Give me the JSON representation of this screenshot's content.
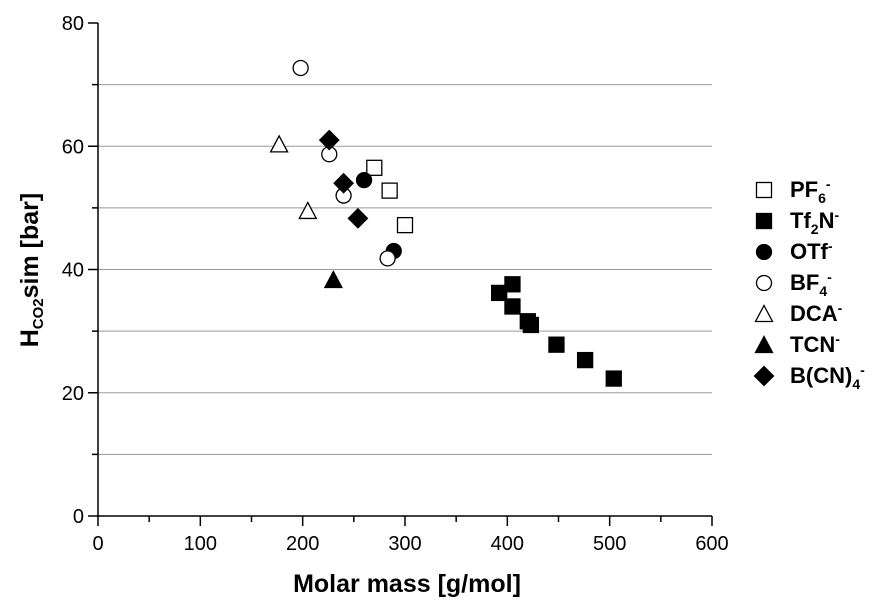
{
  "chart_data": {
    "type": "scatter",
    "title": "",
    "xlabel": "Molar mass [g/mol]",
    "ylabel": {
      "main": "H",
      "sub": "CO2",
      "rest": "sim [bar]"
    },
    "xlim": [
      0,
      600
    ],
    "ylim": [
      0,
      80
    ],
    "xticks": [
      0,
      100,
      200,
      300,
      400,
      500,
      600
    ],
    "yticks": [
      0,
      20,
      40,
      60,
      80
    ],
    "grid": "horizontal",
    "legend_position": "right",
    "series": [
      {
        "name": "PF6-",
        "label": {
          "base": "PF",
          "sub": "6",
          "sup": "-"
        },
        "marker": "square-open",
        "points": [
          {
            "x": 270,
            "y": 56.5
          },
          {
            "x": 285,
            "y": 52.8
          },
          {
            "x": 300,
            "y": 47.2
          }
        ]
      },
      {
        "name": "Tf2N-",
        "label": {
          "base": "Tf",
          "sub": "2",
          "tail": "N",
          "sup": "-"
        },
        "marker": "square-filled",
        "points": [
          {
            "x": 392,
            "y": 36.2
          },
          {
            "x": 405,
            "y": 37.6
          },
          {
            "x": 405,
            "y": 34.0
          },
          {
            "x": 420,
            "y": 31.6
          },
          {
            "x": 423,
            "y": 31.0
          },
          {
            "x": 448,
            "y": 27.8
          },
          {
            "x": 476,
            "y": 25.3
          },
          {
            "x": 504,
            "y": 22.3
          }
        ]
      },
      {
        "name": "OTf-",
        "label": {
          "base": "OTf",
          "sup": "-"
        },
        "marker": "circle-filled",
        "points": [
          {
            "x": 260,
            "y": 54.5
          },
          {
            "x": 289,
            "y": 43.0
          }
        ]
      },
      {
        "name": "BF4-",
        "label": {
          "base": "BF",
          "sub": "4",
          "sup": "-"
        },
        "marker": "circle-open",
        "points": [
          {
            "x": 198,
            "y": 72.7
          },
          {
            "x": 226,
            "y": 58.7
          },
          {
            "x": 240,
            "y": 52.0
          },
          {
            "x": 283,
            "y": 41.8
          }
        ]
      },
      {
        "name": "DCA-",
        "label": {
          "base": "DCA",
          "sup": "-"
        },
        "marker": "triangle-open",
        "points": [
          {
            "x": 177,
            "y": 60.3
          },
          {
            "x": 205,
            "y": 49.5
          }
        ]
      },
      {
        "name": "TCN-",
        "label": {
          "base": "TCN",
          "sup": "-"
        },
        "marker": "triangle-filled",
        "points": [
          {
            "x": 230,
            "y": 38.3
          }
        ]
      },
      {
        "name": "B(CN)4-",
        "label": {
          "base": "B(CN)",
          "sub": "4",
          "sup": "-"
        },
        "marker": "diamond-filled",
        "points": [
          {
            "x": 226,
            "y": 61.0
          },
          {
            "x": 240,
            "y": 54.0
          },
          {
            "x": 254,
            "y": 48.3
          }
        ]
      }
    ]
  }
}
